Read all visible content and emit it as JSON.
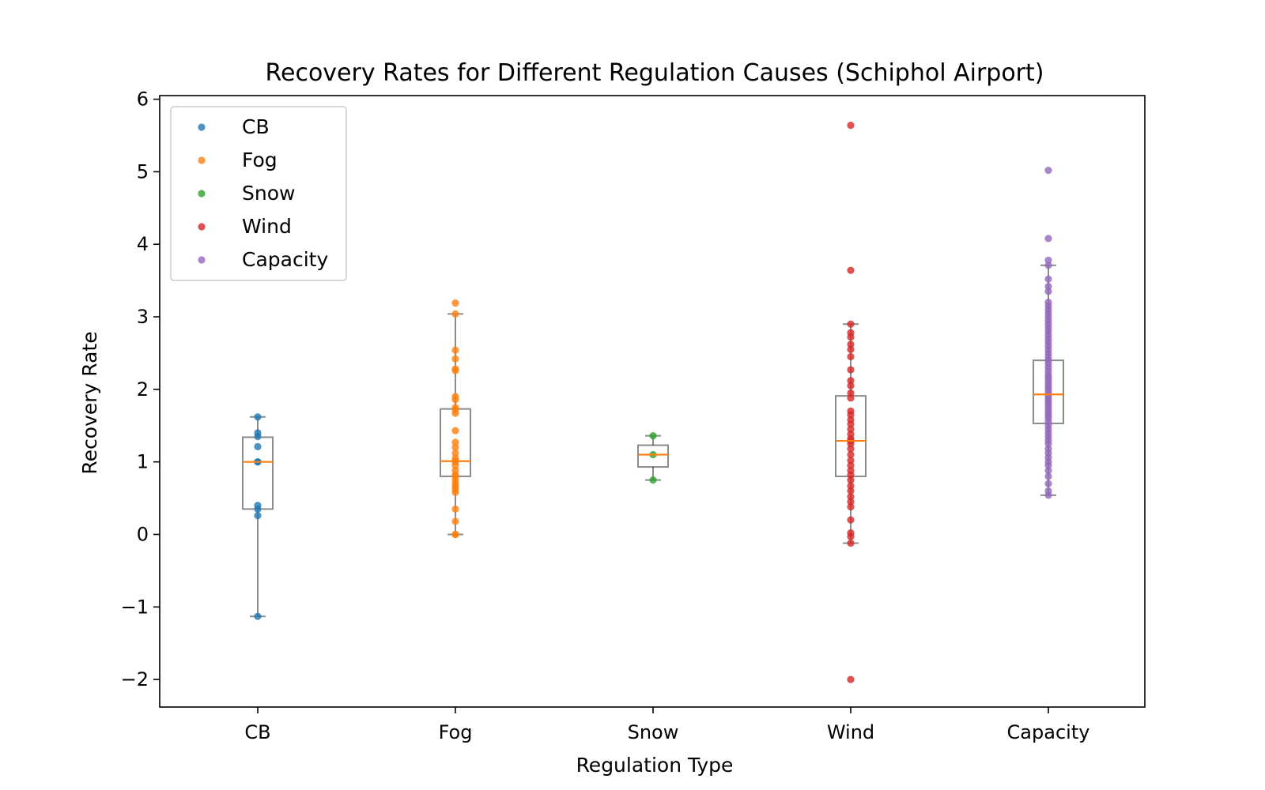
{
  "chart_data": {
    "type": "box+strip",
    "title": "Recovery Rates for Different Regulation Causes (Schiphol Airport)",
    "xlabel": "Regulation Type",
    "ylabel": "Recovery Rate",
    "ylim": [
      -2.38,
      6.05
    ],
    "yticks": [
      -2,
      -1,
      0,
      1,
      2,
      3,
      4,
      5,
      6
    ],
    "ytick_labels": [
      "−2",
      "−1",
      "0",
      "1",
      "2",
      "3",
      "4",
      "5",
      "6"
    ],
    "categories": [
      "CB",
      "Fog",
      "Snow",
      "Wind",
      "Capacity"
    ],
    "grid": false,
    "legend_position": "upper-left",
    "series": [
      {
        "name": "CB",
        "color": "#1f77b4",
        "box": {
          "whisker_low": -1.13,
          "q1": 0.35,
          "median": 1.0,
          "q3": 1.34,
          "whisker_high": 1.62
        },
        "points": [
          -1.13,
          0.26,
          0.35,
          0.4,
          1.0,
          1.0,
          1.21,
          1.35,
          1.4,
          1.62
        ]
      },
      {
        "name": "Fog",
        "color": "#ff7f0e",
        "box": {
          "whisker_low": 0.0,
          "q1": 0.8,
          "median": 1.01,
          "q3": 1.73,
          "whisker_high": 3.04
        },
        "points": [
          0.0,
          0.0,
          0.18,
          0.35,
          0.58,
          0.62,
          0.66,
          0.7,
          0.75,
          0.8,
          0.82,
          0.88,
          0.95,
          1.0,
          1.01,
          1.05,
          1.12,
          1.2,
          1.27,
          1.43,
          1.67,
          1.72,
          1.75,
          1.86,
          1.9,
          2.26,
          2.28,
          2.42,
          2.54,
          3.04,
          3.19
        ]
      },
      {
        "name": "Snow",
        "color": "#2ca02c",
        "box": {
          "whisker_low": 0.75,
          "q1": 0.93,
          "median": 1.1,
          "q3": 1.23,
          "whisker_high": 1.36
        },
        "points": [
          0.75,
          1.1,
          1.36
        ]
      },
      {
        "name": "Wind",
        "color": "#d62728",
        "box": {
          "whisker_low": -0.12,
          "q1": 0.8,
          "median": 1.29,
          "q3": 1.91,
          "whisker_high": 2.9
        },
        "points": [
          -2.0,
          -0.12,
          -0.03,
          0.02,
          0.2,
          0.38,
          0.45,
          0.52,
          0.6,
          0.67,
          0.75,
          0.82,
          0.88,
          0.95,
          1.02,
          1.1,
          1.18,
          1.25,
          1.29,
          1.32,
          1.38,
          1.45,
          1.52,
          1.58,
          1.65,
          1.7,
          1.88,
          1.95,
          2.05,
          2.12,
          2.27,
          2.45,
          2.55,
          2.62,
          2.72,
          2.78,
          2.9,
          3.64,
          5.64
        ]
      },
      {
        "name": "Capacity",
        "color": "#9467bd",
        "box": {
          "whisker_low": 0.54,
          "q1": 1.53,
          "median": 1.93,
          "q3": 2.4,
          "whisker_high": 3.71
        },
        "points": [
          0.54,
          0.6,
          0.7,
          0.8,
          0.88,
          0.95,
          1.0,
          1.06,
          1.12,
          1.18,
          1.25,
          1.3,
          1.35,
          1.4,
          1.45,
          1.5,
          1.55,
          1.6,
          1.64,
          1.68,
          1.72,
          1.76,
          1.8,
          1.84,
          1.88,
          1.92,
          1.96,
          2.0,
          2.04,
          2.08,
          2.12,
          2.16,
          2.2,
          2.25,
          2.3,
          2.35,
          2.4,
          2.45,
          2.5,
          2.55,
          2.6,
          2.65,
          2.7,
          2.75,
          2.8,
          2.85,
          2.9,
          2.95,
          3.0,
          3.05,
          3.1,
          3.15,
          3.2,
          3.35,
          3.42,
          3.52,
          3.71,
          3.78,
          4.08,
          5.02
        ]
      }
    ]
  }
}
